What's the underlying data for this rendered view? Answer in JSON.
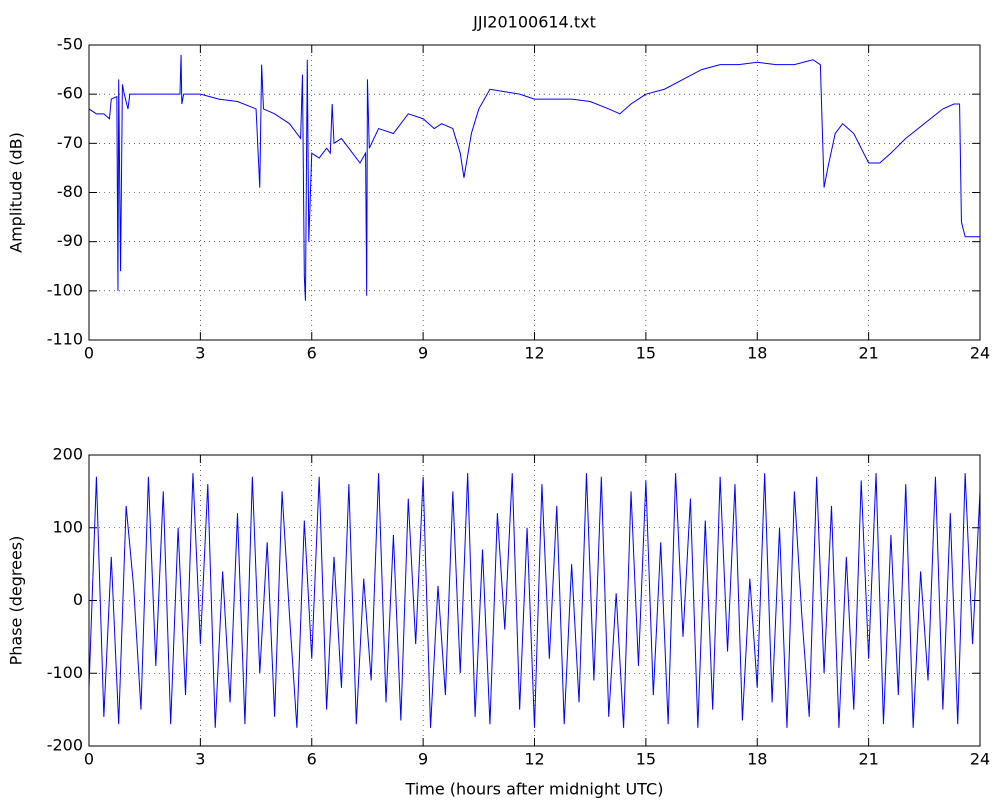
{
  "chart_data": [
    {
      "type": "line",
      "title": "JJI20100614.txt",
      "ylabel": "Amplitude (dB)",
      "color": "#0000ff",
      "grid": true,
      "xlim": [
        0,
        24
      ],
      "xticks": [
        0,
        3,
        6,
        9,
        12,
        15,
        18,
        21,
        24
      ],
      "ylim": [
        -110,
        -50
      ],
      "yticks": [
        -110,
        -100,
        -90,
        -80,
        -70,
        -60,
        -50
      ],
      "x": [
        0,
        0.2,
        0.4,
        0.55,
        0.6,
        0.75,
        0.78,
        0.8,
        0.85,
        0.9,
        0.95,
        1.05,
        1.1,
        1.5,
        2.0,
        2.45,
        2.48,
        2.5,
        2.55,
        3.0,
        3.5,
        4.0,
        4.5,
        4.6,
        4.65,
        4.7,
        5.0,
        5.4,
        5.7,
        5.75,
        5.8,
        5.83,
        5.88,
        5.92,
        6.0,
        6.2,
        6.4,
        6.5,
        6.55,
        6.6,
        6.8,
        7.1,
        7.3,
        7.45,
        7.48,
        7.5,
        7.55,
        7.8,
        8.2,
        8.6,
        9.0,
        9.3,
        9.5,
        9.8,
        10.0,
        10.1,
        10.3,
        10.5,
        10.8,
        11.2,
        11.6,
        12.0,
        12.5,
        13.0,
        13.5,
        14.0,
        14.3,
        14.6,
        15.0,
        15.5,
        16.0,
        16.5,
        17.0,
        17.5,
        18.0,
        18.5,
        19.0,
        19.5,
        19.7,
        19.8,
        19.9,
        20.1,
        20.3,
        20.6,
        21.0,
        21.3,
        21.6,
        22.0,
        22.5,
        23.0,
        23.3,
        23.45,
        23.5,
        23.6,
        23.8,
        24.0
      ],
      "values": [
        -63,
        -64,
        -64,
        -65,
        -61,
        -60.5,
        -100,
        -57,
        -96,
        -58,
        -60,
        -63,
        -60,
        -60,
        -60,
        -60,
        -52,
        -62,
        -60,
        -60,
        -61,
        -61.5,
        -63,
        -79,
        -54,
        -63,
        -64,
        -66,
        -69,
        -56,
        -97,
        -102,
        -53,
        -90,
        -72,
        -73,
        -71,
        -72,
        -62,
        -70,
        -69,
        -72,
        -74,
        -72,
        -101,
        -57,
        -71,
        -67,
        -68,
        -64,
        -65,
        -67,
        -66,
        -67,
        -72,
        -77,
        -68,
        -63,
        -59,
        -59.5,
        -60,
        -61,
        -61,
        -61,
        -61.5,
        -63,
        -64,
        -62,
        -60,
        -59,
        -57,
        -55,
        -54,
        -54,
        -53.5,
        -54,
        -54,
        -53,
        -54,
        -79,
        -75,
        -68,
        -66,
        -68,
        -74,
        -74,
        -72,
        -69,
        -66,
        -63,
        -62,
        -62,
        -86,
        -89,
        -89,
        -89
      ]
    },
    {
      "type": "line",
      "xlabel": "Time (hours after midnight UTC)",
      "ylabel": "Phase (degrees)",
      "color": "#0000ff",
      "grid": true,
      "xlim": [
        0,
        24
      ],
      "xticks": [
        0,
        3,
        6,
        9,
        12,
        15,
        18,
        21,
        24
      ],
      "ylim": [
        -200,
        200
      ],
      "yticks": [
        -200,
        -100,
        0,
        100,
        200
      ],
      "x": [
        0,
        0.2,
        0.4,
        0.6,
        0.8,
        1,
        1.2,
        1.4,
        1.6,
        1.8,
        2,
        2.2,
        2.4,
        2.6,
        2.8,
        3,
        3.2,
        3.4,
        3.6,
        3.8,
        4,
        4.2,
        4.4,
        4.6,
        4.8,
        5,
        5.2,
        5.4,
        5.6,
        5.8,
        6,
        6.2,
        6.4,
        6.6,
        6.8,
        7,
        7.2,
        7.4,
        7.6,
        7.8,
        8,
        8.2,
        8.4,
        8.6,
        8.8,
        9,
        9.2,
        9.4,
        9.6,
        9.8,
        10,
        10.2,
        10.4,
        10.6,
        10.8,
        11,
        11.2,
        11.4,
        11.6,
        11.8,
        12,
        12.2,
        12.4,
        12.6,
        12.8,
        13,
        13.2,
        13.4,
        13.6,
        13.8,
        14,
        14.2,
        14.4,
        14.6,
        14.8,
        15,
        15.2,
        15.4,
        15.6,
        15.8,
        16,
        16.2,
        16.4,
        16.6,
        16.8,
        17,
        17.2,
        17.4,
        17.6,
        17.8,
        18,
        18.2,
        18.4,
        18.6,
        18.8,
        19,
        19.2,
        19.4,
        19.6,
        19.8,
        20,
        20.2,
        20.4,
        20.6,
        20.8,
        21,
        21.2,
        21.4,
        21.6,
        21.8,
        22,
        22.2,
        22.4,
        22.6,
        22.8,
        23,
        23.2,
        23.4,
        23.6,
        23.8,
        24
      ],
      "values": [
        -120,
        170,
        -160,
        60,
        -170,
        130,
        20,
        -150,
        170,
        -90,
        150,
        -170,
        100,
        -130,
        175,
        -60,
        160,
        -175,
        40,
        -140,
        120,
        -170,
        170,
        -100,
        80,
        -160,
        150,
        -20,
        -175,
        110,
        -80,
        170,
        -150,
        60,
        -120,
        160,
        -170,
        30,
        -110,
        175,
        -140,
        90,
        -165,
        140,
        -60,
        170,
        -175,
        20,
        -130,
        150,
        -100,
        175,
        -160,
        70,
        -170,
        120,
        -40,
        175,
        -150,
        100,
        -175,
        160,
        -80,
        130,
        -170,
        50,
        -140,
        175,
        -110,
        170,
        -160,
        10,
        -175,
        150,
        -90,
        165,
        -130,
        80,
        -170,
        175,
        -50,
        140,
        -175,
        110,
        -150,
        170,
        -70,
        160,
        -165,
        30,
        -120,
        175,
        -140,
        100,
        -175,
        150,
        -20,
        -160,
        170,
        -100,
        130,
        -175,
        60,
        -150,
        165,
        -80,
        175,
        -170,
        90,
        -130,
        160,
        -175,
        40,
        -110,
        170,
        -150,
        120,
        -170,
        175,
        -60,
        150
      ]
    }
  ]
}
